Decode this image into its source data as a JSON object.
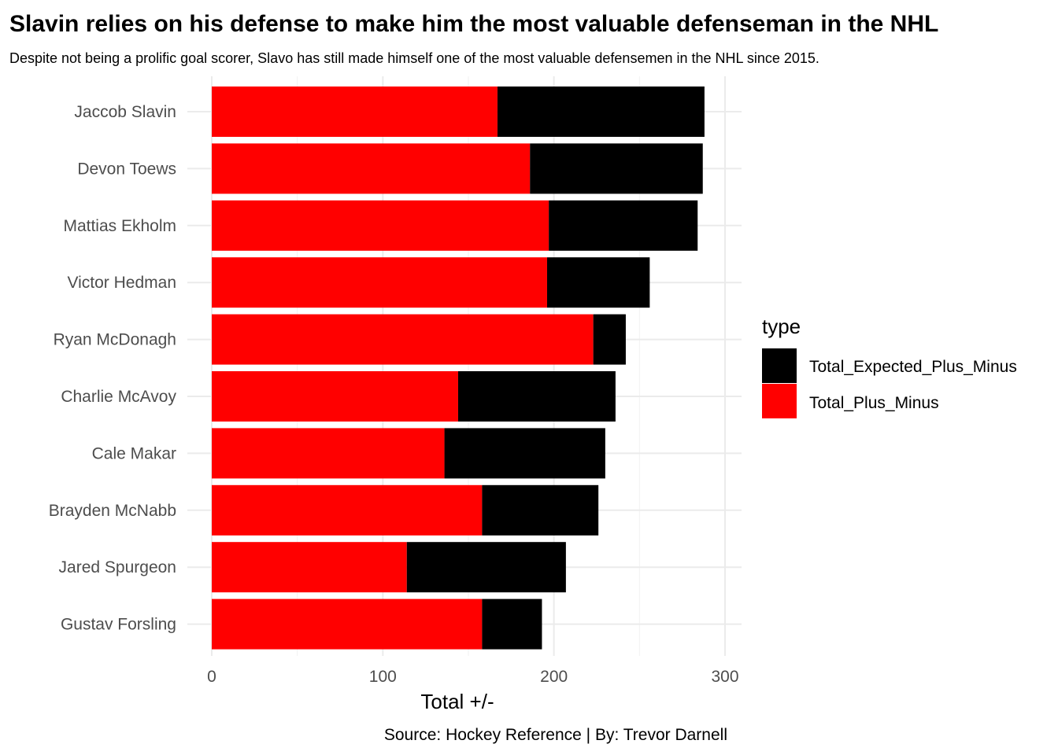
{
  "chart_data": {
    "type": "bar",
    "orientation": "horizontal",
    "stacked": true,
    "title": "Slavin relies on his defense to make him the most valuable defenseman in the NHL",
    "subtitle": "Despite not being a prolific goal scorer, Slavo has still made himself one of the most valuable defensemen in the NHL since 2015.",
    "xlabel": "Total +/-",
    "ylabel": "",
    "caption": "Source: Hockey Reference | By: Trevor Darnell",
    "xlim": [
      0,
      300
    ],
    "xticks": [
      0,
      100,
      200,
      300
    ],
    "grid": true,
    "categories": [
      "Jaccob Slavin",
      "Devon Toews",
      "Mattias Ekholm",
      "Victor Hedman",
      "Ryan McDonagh",
      "Charlie McAvoy",
      "Cale Makar",
      "Brayden McNabb",
      "Jared Spurgeon",
      "Gustav Forsling"
    ],
    "series": [
      {
        "name": "Total_Plus_Minus",
        "color": "#ff0000",
        "values": [
          167,
          186,
          197,
          196,
          223,
          144,
          136,
          158,
          114,
          158
        ]
      },
      {
        "name": "Total_Expected_Plus_Minus",
        "color": "#000000",
        "values": [
          121,
          101,
          87,
          60,
          19,
          92,
          94,
          68,
          93,
          35
        ]
      }
    ],
    "legend": {
      "title": "type",
      "position": "right",
      "entries": [
        {
          "label": "Total_Expected_Plus_Minus",
          "color": "#000000"
        },
        {
          "label": "Total_Plus_Minus",
          "color": "#ff0000"
        }
      ]
    }
  }
}
